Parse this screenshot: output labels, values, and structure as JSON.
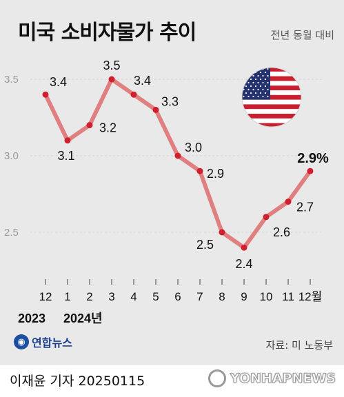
{
  "header": {
    "title": "미국 소비자물가 추이",
    "subtitle": "전년 동월 대비"
  },
  "chart_data": {
    "type": "line",
    "title": "미국 소비자물가 추이",
    "subtitle": "전년 동월 대비",
    "x_labels": [
      "12",
      "1",
      "2",
      "3",
      "4",
      "5",
      "6",
      "7",
      "8",
      "9",
      "10",
      "11",
      "12월"
    ],
    "year_labels": [
      {
        "label": "2023",
        "index": 0
      },
      {
        "label": "2024년",
        "index": 1
      }
    ],
    "values": [
      3.4,
      3.1,
      3.2,
      3.5,
      3.4,
      3.3,
      3.0,
      2.9,
      2.5,
      2.4,
      2.6,
      2.7,
      2.9
    ],
    "value_labels": [
      "3.4",
      "3.1",
      "3.2",
      "3.5",
      "3.4",
      "3.3",
      "3.0",
      "2.9",
      "2.5",
      "2.4",
      "2.6",
      "2.7",
      "2.9%"
    ],
    "y_ticks": [
      "3.5",
      "3.0",
      "2.5"
    ],
    "ylim": [
      2.2,
      3.6
    ],
    "grid": true,
    "line_color": "#e07f7f",
    "point_color": "#d0202f",
    "highlight_last": true
  },
  "flag": {
    "icon": "us-flag-icon"
  },
  "footer": {
    "logo_text": "연합뉴스",
    "source": "자료: 미 노동부",
    "author": "이재윤 기자  20250115",
    "watermark": "YONHAPNEWS"
  }
}
